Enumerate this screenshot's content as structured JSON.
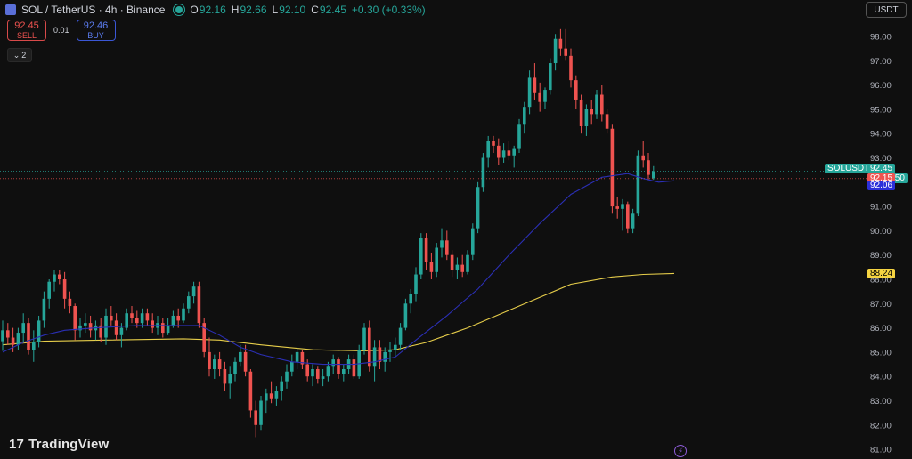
{
  "header": {
    "title": "SOL / TetherUS · 4h · Binance",
    "ohlc": [
      {
        "k": "O",
        "v": "92.16"
      },
      {
        "k": "H",
        "v": "92.66"
      },
      {
        "k": "L",
        "v": "92.10"
      },
      {
        "k": "C",
        "v": "92.45"
      },
      {
        "k": "",
        "v": "+0.30 (+0.33%)"
      }
    ]
  },
  "trade": {
    "sell_price": "92.45",
    "sell_label": "SELL",
    "spread": "0.01",
    "buy_price": "92.46",
    "buy_label": "BUY"
  },
  "indicators_toggle": "2",
  "currency": "USDT",
  "brand": "TradingView",
  "colors": {
    "up": "#26a69a",
    "down": "#ef5350",
    "ma_fast": "#2b2fb5",
    "ma_slow": "#e6cd4a",
    "background": "#0f0f0f"
  },
  "price_tags": {
    "symbol": "SOLUSDT",
    "last": "92.45",
    "countdown": "03:08:50",
    "bid": "92.15",
    "ma_fast": "92.06",
    "ma_slow": "88.24"
  },
  "chart_data": {
    "type": "candlestick",
    "symbol": "SOLUSDT",
    "interval": "4h",
    "ylim": [
      80.6,
      98.8
    ],
    "y_ticks": [
      "98.00",
      "97.00",
      "96.00",
      "95.00",
      "94.00",
      "93.00",
      "92.00",
      "91.00",
      "90.00",
      "89.00",
      "88.00",
      "87.00",
      "86.00",
      "85.00",
      "84.00",
      "83.00",
      "82.00",
      "81.00"
    ],
    "candles": [
      [
        85.45,
        86.3,
        85.05,
        85.9
      ],
      [
        85.9,
        86.2,
        85.3,
        85.6
      ],
      [
        85.6,
        86.0,
        85.0,
        85.3
      ],
      [
        85.3,
        86.0,
        85.1,
        85.8
      ],
      [
        85.8,
        86.6,
        85.4,
        86.2
      ],
      [
        86.2,
        86.4,
        84.9,
        85.1
      ],
      [
        85.1,
        85.9,
        84.6,
        85.4
      ],
      [
        85.4,
        86.5,
        85.2,
        86.3
      ],
      [
        86.3,
        87.5,
        86.0,
        87.2
      ],
      [
        87.2,
        88.0,
        86.8,
        87.9
      ],
      [
        87.9,
        88.4,
        87.5,
        88.2
      ],
      [
        88.2,
        88.4,
        87.8,
        88.0
      ],
      [
        88.0,
        88.3,
        86.8,
        87.2
      ],
      [
        87.2,
        87.5,
        86.6,
        86.9
      ],
      [
        86.9,
        87.0,
        85.5,
        85.9
      ],
      [
        85.9,
        86.4,
        85.6,
        86.1
      ],
      [
        86.1,
        86.6,
        85.8,
        86.2
      ],
      [
        86.2,
        86.5,
        85.6,
        85.9
      ],
      [
        85.9,
        86.3,
        85.5,
        86.1
      ],
      [
        86.1,
        86.4,
        85.4,
        85.6
      ],
      [
        85.6,
        86.8,
        85.3,
        86.5
      ],
      [
        86.5,
        86.9,
        86.1,
        86.3
      ],
      [
        86.3,
        86.6,
        85.5,
        85.7
      ],
      [
        85.7,
        86.2,
        85.2,
        86.0
      ],
      [
        86.0,
        86.8,
        85.9,
        86.6
      ],
      [
        86.6,
        86.9,
        86.2,
        86.4
      ],
      [
        86.4,
        86.7,
        86.0,
        86.2
      ],
      [
        86.2,
        86.8,
        86.0,
        86.6
      ],
      [
        86.6,
        86.8,
        86.1,
        86.3
      ],
      [
        86.3,
        86.6,
        85.8,
        86.0
      ],
      [
        86.0,
        86.5,
        85.7,
        86.2
      ],
      [
        86.2,
        86.4,
        85.6,
        85.8
      ],
      [
        85.8,
        86.4,
        85.7,
        86.1
      ],
      [
        86.1,
        86.7,
        86.0,
        86.5
      ],
      [
        86.5,
        86.8,
        86.0,
        86.3
      ],
      [
        86.3,
        87.0,
        86.2,
        86.8
      ],
      [
        86.8,
        87.5,
        86.6,
        87.3
      ],
      [
        87.3,
        87.9,
        87.0,
        87.7
      ],
      [
        87.7,
        87.9,
        86.0,
        86.2
      ],
      [
        86.2,
        86.4,
        84.8,
        85.0
      ],
      [
        85.0,
        85.6,
        84.0,
        84.3
      ],
      [
        84.3,
        84.9,
        83.9,
        84.7
      ],
      [
        84.7,
        85.0,
        84.0,
        84.3
      ],
      [
        84.3,
        84.6,
        83.4,
        83.7
      ],
      [
        83.7,
        84.4,
        83.1,
        84.1
      ],
      [
        84.1,
        84.8,
        83.8,
        84.6
      ],
      [
        84.6,
        85.3,
        84.4,
        85.0
      ],
      [
        85.0,
        85.3,
        84.0,
        84.2
      ],
      [
        84.2,
        84.3,
        82.3,
        82.6
      ],
      [
        82.6,
        83.0,
        81.5,
        82.0
      ],
      [
        82.0,
        83.2,
        81.8,
        83.0
      ],
      [
        83.0,
        83.5,
        82.5,
        83.3
      ],
      [
        83.3,
        83.8,
        82.9,
        83.1
      ],
      [
        83.1,
        83.6,
        82.8,
        83.4
      ],
      [
        83.4,
        84.0,
        83.0,
        83.8
      ],
      [
        83.8,
        84.5,
        83.5,
        84.2
      ],
      [
        84.2,
        84.9,
        84.0,
        84.6
      ],
      [
        84.6,
        85.2,
        84.3,
        85.0
      ],
      [
        85.0,
        85.1,
        84.3,
        84.5
      ],
      [
        84.5,
        84.7,
        83.8,
        84.0
      ],
      [
        84.0,
        84.5,
        83.6,
        84.3
      ],
      [
        84.3,
        84.4,
        83.7,
        83.9
      ],
      [
        83.9,
        84.3,
        83.6,
        84.0
      ],
      [
        84.0,
        84.6,
        83.8,
        84.4
      ],
      [
        84.4,
        84.9,
        84.1,
        84.7
      ],
      [
        84.7,
        84.8,
        83.9,
        84.1
      ],
      [
        84.1,
        84.5,
        83.8,
        84.3
      ],
      [
        84.3,
        84.9,
        84.1,
        84.7
      ],
      [
        84.7,
        84.9,
        83.9,
        84.0
      ],
      [
        84.0,
        85.3,
        83.9,
        85.1
      ],
      [
        85.1,
        86.2,
        84.9,
        86.0
      ],
      [
        86.0,
        86.3,
        84.2,
        84.4
      ],
      [
        84.4,
        85.5,
        83.8,
        85.2
      ],
      [
        85.2,
        85.5,
        84.3,
        84.6
      ],
      [
        84.6,
        85.2,
        84.2,
        85.0
      ],
      [
        85.0,
        85.4,
        84.6,
        85.1
      ],
      [
        85.1,
        85.6,
        84.8,
        85.3
      ],
      [
        85.3,
        86.2,
        85.1,
        86.0
      ],
      [
        86.0,
        87.2,
        85.9,
        87.0
      ],
      [
        87.0,
        87.6,
        86.6,
        87.4
      ],
      [
        87.4,
        88.5,
        87.1,
        88.2
      ],
      [
        88.2,
        89.9,
        88.0,
        89.7
      ],
      [
        89.7,
        89.9,
        88.4,
        88.7
      ],
      [
        88.7,
        89.1,
        88.0,
        88.3
      ],
      [
        88.3,
        89.5,
        88.1,
        89.3
      ],
      [
        89.3,
        90.1,
        88.9,
        89.6
      ],
      [
        89.6,
        90.0,
        88.8,
        89.0
      ],
      [
        89.0,
        89.2,
        88.1,
        88.4
      ],
      [
        88.4,
        88.9,
        88.0,
        88.6
      ],
      [
        88.6,
        89.0,
        88.1,
        88.3
      ],
      [
        88.3,
        89.2,
        88.2,
        89.0
      ],
      [
        89.0,
        90.3,
        88.8,
        90.1
      ],
      [
        90.1,
        92.0,
        89.9,
        91.8
      ],
      [
        91.8,
        93.2,
        91.6,
        93.0
      ],
      [
        93.0,
        93.9,
        92.6,
        93.7
      ],
      [
        93.7,
        93.9,
        93.2,
        93.5
      ],
      [
        93.5,
        93.8,
        92.7,
        93.0
      ],
      [
        93.0,
        93.6,
        92.8,
        93.3
      ],
      [
        93.3,
        93.7,
        92.9,
        93.1
      ],
      [
        93.1,
        93.5,
        92.6,
        93.4
      ],
      [
        93.4,
        94.6,
        93.2,
        94.4
      ],
      [
        94.4,
        95.3,
        94.0,
        95.1
      ],
      [
        95.1,
        96.6,
        94.8,
        96.3
      ],
      [
        96.3,
        96.9,
        95.4,
        95.7
      ],
      [
        95.7,
        96.1,
        94.9,
        95.3
      ],
      [
        95.3,
        95.9,
        95.0,
        95.8
      ],
      [
        95.8,
        97.1,
        95.6,
        96.9
      ],
      [
        96.9,
        98.1,
        96.6,
        97.9
      ],
      [
        97.9,
        98.3,
        97.2,
        97.5
      ],
      [
        97.5,
        98.3,
        97.0,
        97.2
      ],
      [
        97.2,
        97.5,
        95.9,
        96.2
      ],
      [
        96.2,
        96.4,
        95.0,
        95.4
      ],
      [
        95.4,
        95.6,
        94.0,
        94.3
      ],
      [
        94.3,
        95.2,
        93.9,
        95.0
      ],
      [
        95.0,
        95.4,
        94.4,
        94.8
      ],
      [
        94.8,
        95.8,
        94.6,
        95.6
      ],
      [
        95.6,
        96.0,
        94.5,
        94.8
      ],
      [
        94.8,
        95.0,
        94.0,
        94.2
      ],
      [
        94.2,
        94.4,
        90.7,
        91.0
      ],
      [
        91.0,
        91.4,
        90.5,
        90.9
      ],
      [
        90.9,
        91.3,
        90.0,
        91.1
      ],
      [
        91.1,
        91.2,
        89.9,
        90.1
      ],
      [
        90.1,
        90.9,
        89.9,
        90.7
      ],
      [
        90.7,
        93.3,
        90.6,
        93.1
      ],
      [
        93.1,
        93.7,
        92.6,
        92.9
      ],
      [
        92.9,
        93.2,
        92.1,
        92.3
      ],
      [
        92.16,
        92.66,
        92.1,
        92.45
      ]
    ],
    "ma_fast": [
      [
        0,
        85.0
      ],
      [
        4,
        85.4
      ],
      [
        8,
        85.7
      ],
      [
        12,
        85.9
      ],
      [
        18,
        86.0
      ],
      [
        26,
        86.1
      ],
      [
        34,
        86.1
      ],
      [
        38,
        86.1
      ],
      [
        42,
        85.7
      ],
      [
        46,
        85.2
      ],
      [
        50,
        84.9
      ],
      [
        56,
        84.6
      ],
      [
        62,
        84.5
      ],
      [
        68,
        84.5
      ],
      [
        72,
        84.6
      ],
      [
        76,
        84.8
      ],
      [
        80,
        85.5
      ],
      [
        86,
        86.5
      ],
      [
        92,
        87.6
      ],
      [
        98,
        89.0
      ],
      [
        104,
        90.3
      ],
      [
        110,
        91.5
      ],
      [
        116,
        92.2
      ],
      [
        121,
        92.35
      ],
      [
        124,
        92.15
      ],
      [
        127,
        92.0
      ],
      [
        130,
        92.06
      ]
    ],
    "ma_slow": [
      [
        0,
        85.3
      ],
      [
        8,
        85.45
      ],
      [
        20,
        85.5
      ],
      [
        35,
        85.55
      ],
      [
        42,
        85.5
      ],
      [
        50,
        85.3
      ],
      [
        60,
        85.1
      ],
      [
        70,
        85.05
      ],
      [
        76,
        85.1
      ],
      [
        82,
        85.4
      ],
      [
        90,
        86.0
      ],
      [
        100,
        86.9
      ],
      [
        110,
        87.8
      ],
      [
        118,
        88.1
      ],
      [
        124,
        88.2
      ],
      [
        130,
        88.24
      ]
    ]
  }
}
